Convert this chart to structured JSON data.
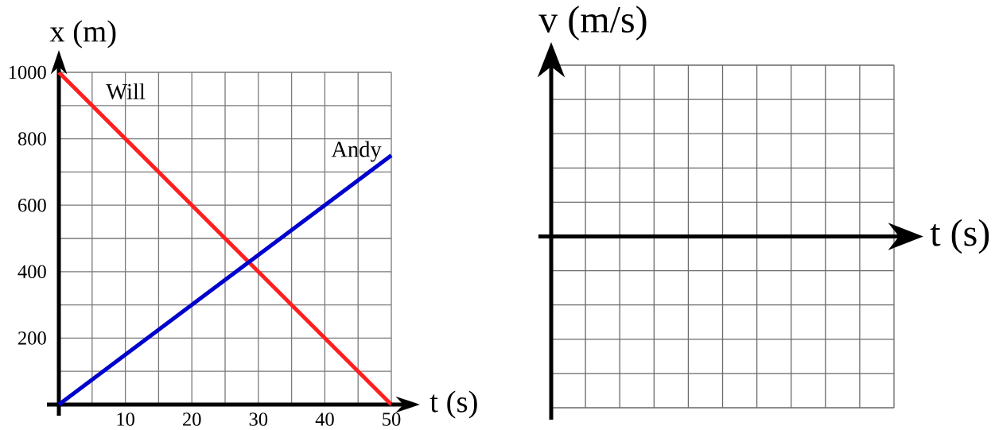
{
  "chart_data": [
    {
      "type": "line",
      "xlabel": "t (s)",
      "ylabel": "x (m)",
      "xlim": [
        0,
        50
      ],
      "ylim": [
        0,
        1000
      ],
      "x": [
        0,
        50
      ],
      "xticks": [
        {
          "value": 0,
          "label": null
        },
        {
          "value": 5,
          "label": null
        },
        10,
        {
          "value": 15,
          "label": null
        },
        20,
        {
          "value": 25,
          "label": null
        },
        30,
        {
          "value": 35,
          "label": null
        },
        40,
        {
          "value": 45,
          "label": null
        },
        50
      ],
      "yticks": [
        {
          "value": 0,
          "label": null
        },
        {
          "value": 100,
          "label": null
        },
        200,
        {
          "value": 300,
          "label": null
        },
        400,
        {
          "value": 500,
          "label": null
        },
        600,
        {
          "value": 700,
          "label": null
        },
        800,
        {
          "value": 900,
          "label": null
        },
        1000
      ],
      "grid": true,
      "series": [
        {
          "name": "Will",
          "color": "#ff2020",
          "values": [
            1000,
            0
          ]
        },
        {
          "name": "Andy",
          "color": "#0000cc",
          "values": [
            0,
            750
          ]
        }
      ]
    },
    {
      "type": "other",
      "xlabel": "t (s)",
      "ylabel": "v (m/s)"
    }
  ]
}
